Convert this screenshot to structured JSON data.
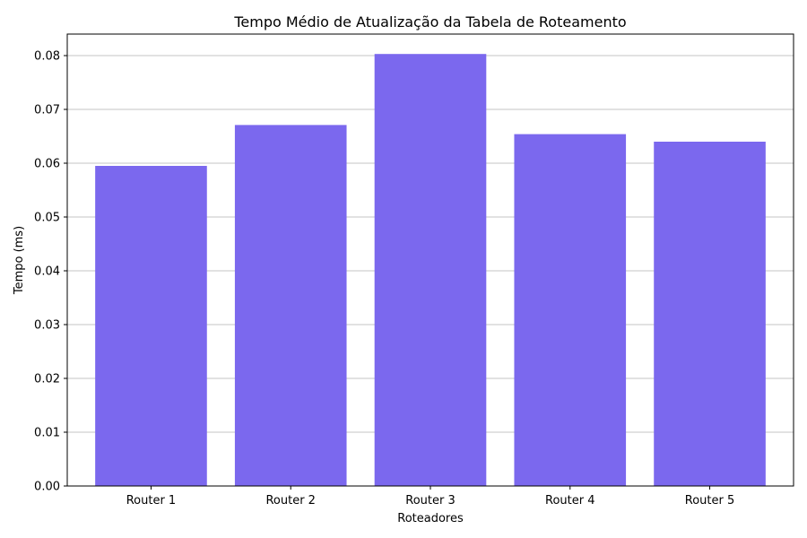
{
  "chart_data": {
    "type": "bar",
    "title": "Tempo Médio de Atualização da Tabela de Roteamento",
    "xlabel": "Roteadores",
    "ylabel": "Tempo (ms)",
    "categories": [
      "Router 1",
      "Router 2",
      "Router 3",
      "Router 4",
      "Router 5"
    ],
    "values": [
      0.0595,
      0.0671,
      0.0803,
      0.0654,
      0.064
    ],
    "ylim": [
      0,
      0.084
    ],
    "yticks": [
      "0.00",
      "0.01",
      "0.02",
      "0.03",
      "0.04",
      "0.05",
      "0.06",
      "0.07",
      "0.08"
    ],
    "ytick_values": [
      0,
      0.01,
      0.02,
      0.03,
      0.04,
      0.05,
      0.06,
      0.07,
      0.08
    ],
    "grid": "horizontal",
    "bar_color": "#7b68ee",
    "grid_color": "#b0b0b0"
  }
}
